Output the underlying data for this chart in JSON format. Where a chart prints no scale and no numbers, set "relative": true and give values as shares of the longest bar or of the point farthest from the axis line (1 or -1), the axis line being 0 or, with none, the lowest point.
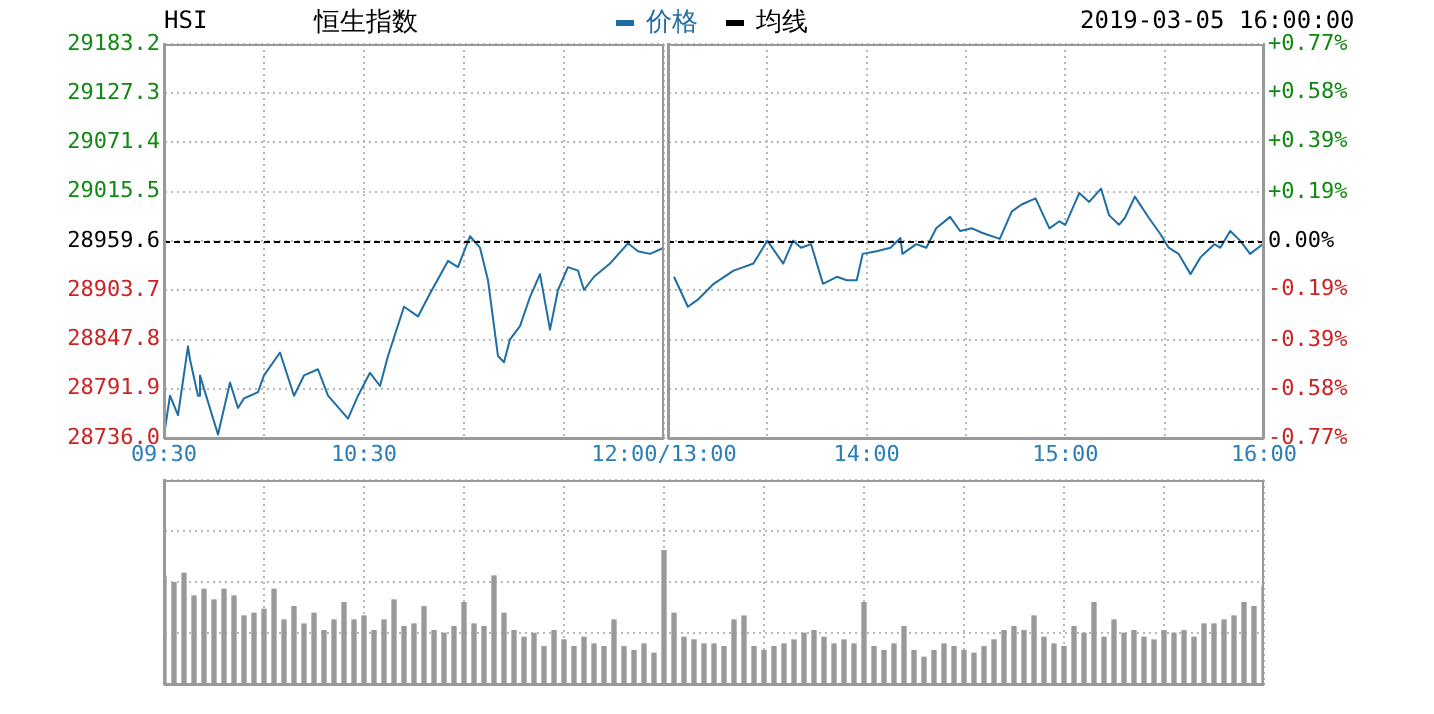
{
  "chart_data": [
    {
      "type": "line",
      "title": "恒生指数",
      "subtitle": "HSI",
      "annotations": [
        "2019-03-05 16:00:00"
      ],
      "legend": "top",
      "grid": true,
      "xlim": [
        9.5,
        12
      ],
      "xticks": [
        {
          "value": 9.5,
          "label": "09:30"
        },
        {
          "value": 10,
          "label": null
        },
        {
          "value": 10.5,
          "label": "10:30"
        },
        {
          "value": 11,
          "label": null
        },
        {
          "value": 11.5,
          "label": null
        },
        {
          "value": 12,
          "label": "12:00/13:00"
        }
      ],
      "ylim": [
        28736,
        29183.2
      ],
      "yticks": [
        {
          "value": 28736,
          "label": "28736.0"
        },
        28791.9,
        28847.8,
        28903.7,
        28959.6,
        29015.5,
        29071.4,
        29127.3,
        29183.2
      ],
      "ref_lines": [
        {
          "axis": "y",
          "value": 28959.6,
          "color": "#000000",
          "line_style": "dashed"
        }
      ],
      "x": [
        9.5,
        9.53,
        9.57,
        9.62,
        9.63,
        9.67,
        9.68,
        9.72,
        9.77,
        9.83,
        9.87,
        9.9,
        9.97,
        10,
        10.08,
        10.15,
        10.2,
        10.27,
        10.32,
        10.42,
        10.47,
        10.53,
        10.58,
        10.62,
        10.7,
        10.77,
        10.83,
        10.92,
        10.97,
        11.03,
        11.08,
        11.12,
        11.17,
        11.2,
        11.23,
        11.28,
        11.33,
        11.38,
        11.43,
        11.47,
        11.52,
        11.57,
        11.6,
        11.65,
        11.73,
        11.82,
        11.87,
        11.93,
        12
      ],
      "series": [
        {
          "name": "价格",
          "color": "#1f6ea3",
          "values": [
            28739,
            28784,
            28762,
            28840,
            28825,
            28784,
            28807,
            28777,
            28740,
            28799,
            28770,
            28781,
            28788,
            28807,
            28833,
            28784,
            28807,
            28814,
            28784,
            28758,
            28784,
            28810,
            28795,
            28829,
            28885,
            28874,
            28900,
            28937,
            28930,
            28965,
            28952,
            28915,
            28829,
            28822,
            28848,
            28863,
            28896,
            28922,
            28859,
            28904,
            28930,
            28926,
            28904,
            28919,
            28934,
            28957,
            28948,
            28945,
            28952
          ]
        },
        {
          "name": "均线",
          "color": "#000000",
          "values": [
            null,
            null,
            null,
            null,
            null,
            null,
            null,
            null,
            null,
            null,
            null,
            null,
            null,
            null,
            null,
            null,
            null,
            null,
            null,
            null,
            null,
            null,
            null,
            null,
            null,
            null,
            null,
            null,
            null,
            null,
            null,
            null,
            null,
            null,
            null,
            null,
            null,
            null,
            null,
            null,
            null,
            null,
            null,
            null,
            null,
            null,
            null,
            null,
            null
          ]
        }
      ]
    },
    {
      "type": "line",
      "grid": true,
      "tick_labels": "x",
      "xlim": [
        13,
        16
      ],
      "xticks": [
        {
          "value": 13,
          "label": null
        },
        {
          "value": 13.5,
          "label": null
        },
        {
          "value": 14,
          "label": "14:00"
        },
        {
          "value": 14.5,
          "label": null
        },
        {
          "value": 15,
          "label": "15:00"
        },
        {
          "value": 15.5,
          "label": null
        },
        {
          "value": 16,
          "label": "16:00"
        }
      ],
      "ylim": [
        28736,
        29183.2
      ],
      "yticks": [
        28736,
        28791.9,
        28847.8,
        28903.7,
        28959.6,
        29015.5,
        29071.4,
        29127.3,
        29183.2
      ],
      "y2lim": [
        -0.77,
        0.77
      ],
      "y2ticks": [
        {
          "value": -0.77,
          "label": "-0.77%"
        },
        {
          "value": -0.58,
          "label": "-0.58%"
        },
        {
          "value": -0.39,
          "label": "-0.39%"
        },
        {
          "value": -0.19,
          "label": "-0.19%"
        },
        {
          "value": 0,
          "label": "0.00%"
        },
        {
          "value": 0.19,
          "label": "+0.19%"
        },
        {
          "value": 0.39,
          "label": "+0.39%"
        },
        {
          "value": 0.58,
          "label": "+0.58%"
        },
        {
          "value": 0.77,
          "label": "+0.77%"
        }
      ],
      "ref_lines": [
        {
          "axis": "y",
          "value": 28959.6,
          "color": "#000000",
          "line_style": "dashed"
        }
      ],
      "x": [
        13.03,
        13.1,
        13.15,
        13.23,
        13.33,
        13.38,
        13.43,
        13.5,
        13.58,
        13.63,
        13.67,
        13.72,
        13.78,
        13.85,
        13.9,
        13.95,
        13.98,
        14.05,
        14.12,
        14.17,
        14.18,
        14.25,
        14.3,
        14.35,
        14.42,
        14.47,
        14.53,
        14.58,
        14.67,
        14.73,
        14.78,
        14.85,
        14.92,
        14.97,
        15,
        15.07,
        15.12,
        15.18,
        15.22,
        15.27,
        15.3,
        15.35,
        15.42,
        15.48,
        15.52,
        15.57,
        15.63,
        15.68,
        15.75,
        15.78,
        15.83,
        15.88,
        15.93,
        16
      ],
      "series": [
        {
          "color": "#1f6ea3",
          "values": [
            28919,
            28885,
            28893,
            28911,
            28926,
            28930,
            28934,
            28960,
            28934,
            28960,
            28952,
            28956,
            28911,
            28919,
            28915,
            28915,
            28945,
            28948,
            28952,
            28963,
            28945,
            28956,
            28952,
            28974,
            28987,
            28971,
            28974,
            28969,
            28962,
            28993,
            29001,
            29008,
            28974,
            28982,
            28978,
            29014,
            29004,
            29019,
            28989,
            28978,
            28986,
            29010,
            28986,
            28967,
            28952,
            28945,
            28922,
            28941,
            28956,
            28952,
            28971,
            28960,
            28945,
            28957
          ]
        }
      ]
    },
    {
      "type": "bar",
      "relative": true,
      "grid": true,
      "color": "#999999",
      "categories": [
        null,
        null,
        null,
        null,
        null,
        null,
        null,
        null,
        null,
        null,
        null,
        null,
        null,
        null,
        null,
        null,
        null,
        null,
        null,
        null,
        null,
        null,
        null,
        null,
        null,
        null,
        null,
        null,
        null,
        null,
        null,
        null,
        null,
        null,
        null,
        null,
        null,
        null,
        null,
        null,
        null,
        null,
        null,
        null,
        null,
        null,
        null,
        null,
        null,
        null,
        null,
        null,
        null,
        null,
        null,
        null,
        null,
        null,
        null,
        null,
        null,
        null,
        null,
        null,
        null,
        null,
        null,
        null,
        null,
        null,
        null,
        null,
        null,
        null,
        null,
        null,
        null,
        null,
        null,
        null,
        null,
        null,
        null,
        null,
        null,
        null,
        null,
        null,
        null,
        null,
        null,
        null,
        null,
        null,
        null,
        null,
        null,
        null,
        null,
        null,
        null,
        null,
        null,
        null,
        null,
        null,
        null,
        null,
        null,
        null,
        null
      ],
      "values": [
        0.81,
        0.76,
        0.83,
        0.66,
        0.71,
        0.63,
        0.71,
        0.66,
        0.51,
        0.53,
        0.56,
        0.71,
        0.48,
        0.58,
        0.45,
        0.53,
        0.4,
        0.48,
        0.61,
        0.48,
        0.51,
        0.4,
        0.48,
        0.63,
        0.43,
        0.45,
        0.58,
        0.4,
        0.38,
        0.43,
        0.61,
        0.45,
        0.43,
        0.81,
        0.53,
        0.4,
        0.35,
        0.38,
        0.28,
        0.4,
        0.33,
        0.28,
        0.35,
        0.3,
        0.28,
        0.48,
        0.28,
        0.25,
        0.3,
        0.23,
        1,
        0.53,
        0.35,
        0.33,
        0.3,
        0.3,
        0.28,
        0.48,
        0.51,
        0.28,
        0.25,
        0.28,
        0.3,
        0.33,
        0.38,
        0.4,
        0.35,
        0.3,
        0.33,
        0.3,
        0.61,
        0.28,
        0.25,
        0.3,
        0.43,
        0.25,
        0.2,
        0.25,
        0.3,
        0.28,
        0.25,
        0.23,
        0.28,
        0.33,
        0.4,
        0.43,
        0.4,
        0.51,
        0.35,
        0.3,
        0.28,
        0.43,
        0.38,
        0.61,
        0.35,
        0.48,
        0.38,
        0.4,
        0.35,
        0.33,
        0.4,
        0.38,
        0.4,
        0.35,
        0.45,
        0.45,
        0.48,
        0.51,
        0.61,
        0.58,
        0.73
      ]
    }
  ]
}
